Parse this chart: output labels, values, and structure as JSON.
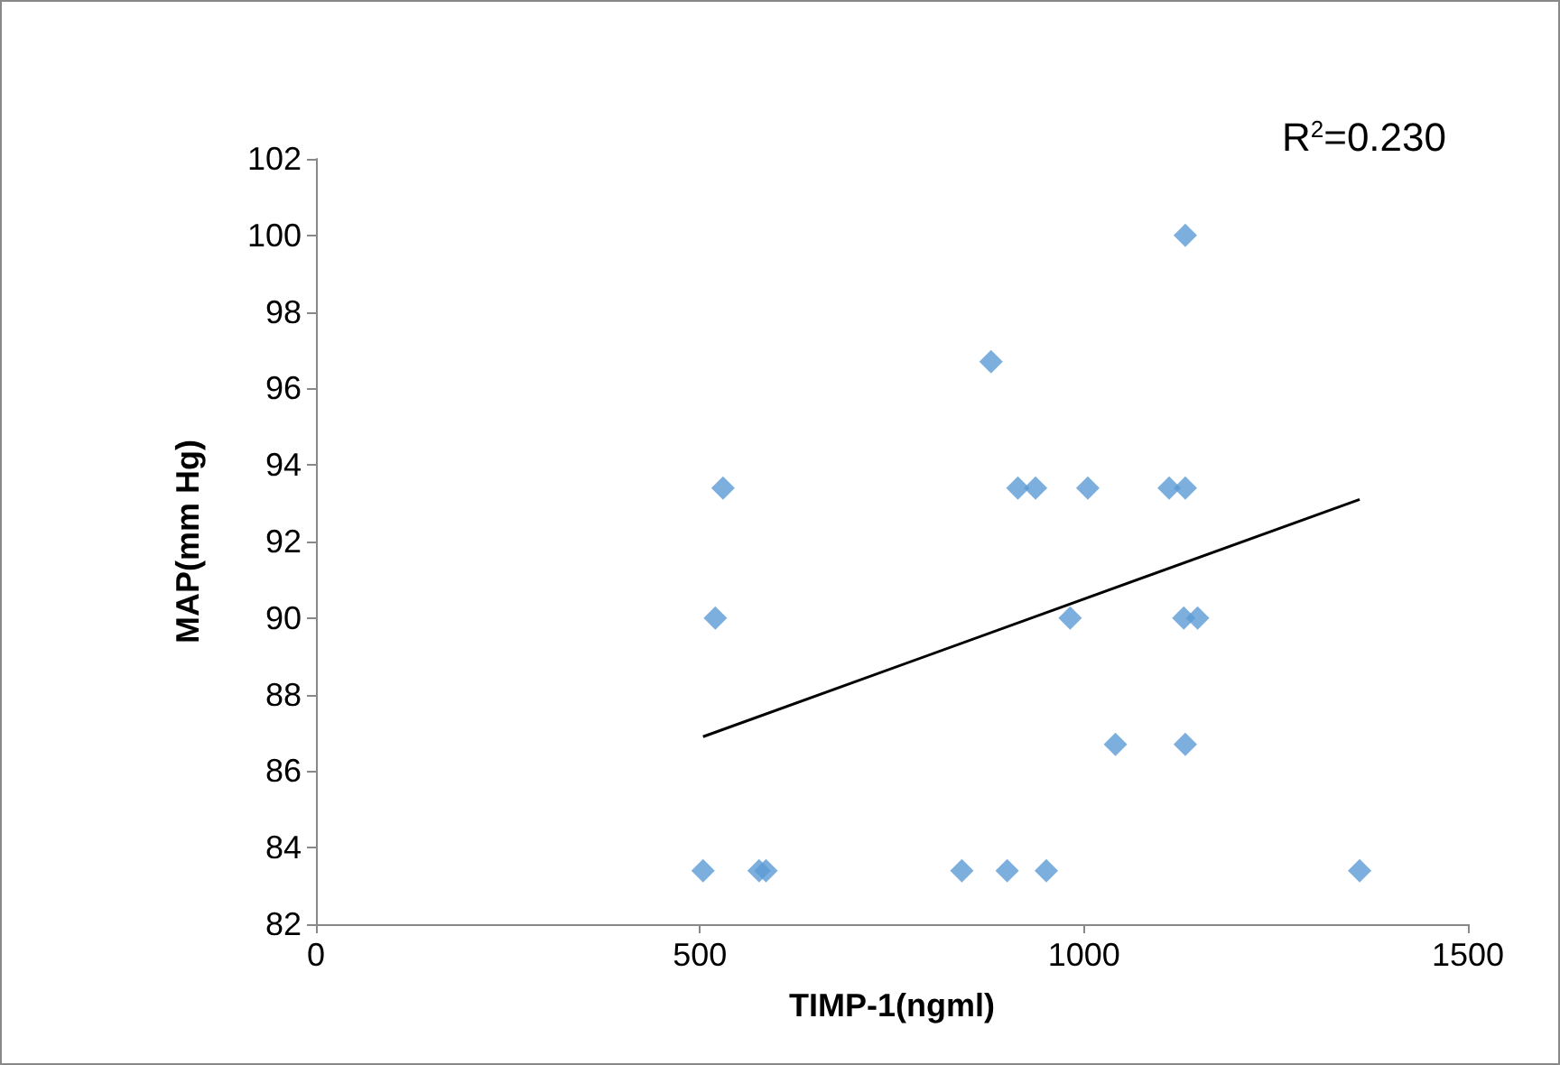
{
  "chart_data": {
    "type": "scatter",
    "xlabel": "TIMP-1(ngml)",
    "ylabel": "MAP(mm Hg)",
    "annotations": [
      "R$^{2}$=0.230"
    ],
    "xlim": [
      0,
      1500
    ],
    "xticks": [
      0,
      500,
      1000,
      1500
    ],
    "ylim": [
      82,
      102
    ],
    "yticks": [
      82,
      84,
      86,
      88,
      90,
      92,
      94,
      96,
      98,
      100,
      102
    ],
    "grid": false,
    "marker": "diamond",
    "series": [
      {
        "color": "#5b9bd5",
        "x": [
          504,
          520,
          530,
          577,
          586,
          841,
          879,
          900,
          914,
          937,
          951,
          982,
          1005,
          1041,
          1111,
          1132,
          1132,
          1130,
          1148,
          1132,
          1359
        ],
        "values": [
          83.4,
          90,
          93.4,
          83.4,
          83.4,
          83.4,
          96.7,
          83.4,
          93.4,
          93.4,
          83.4,
          90,
          93.4,
          86.7,
          93.4,
          100,
          93.4,
          90,
          90,
          86.7,
          83.4
        ]
      },
      {
        "type": "line",
        "color": "#000000",
        "marker": "none",
        "x": [
          504,
          1359
        ],
        "values": [
          86.9,
          93.1
        ]
      }
    ]
  }
}
